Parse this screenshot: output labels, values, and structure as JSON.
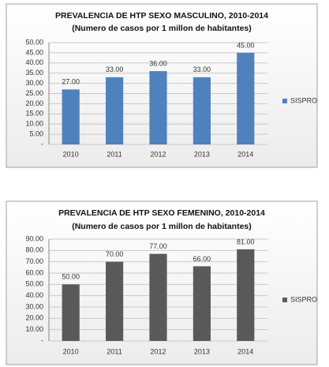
{
  "chart_data": [
    {
      "type": "bar",
      "title": "PREVALENCIA DE HTP SEXO MASCULINO, 2010-2014",
      "subtitle": "(Numero de casos por 1 millon de habitantes)",
      "categories": [
        "2010",
        "2011",
        "2012",
        "2013",
        "2014"
      ],
      "series": [
        {
          "name": "SISPRO",
          "color": "#4f81bd",
          "values": [
            27,
            33,
            36,
            33,
            45
          ],
          "value_labels": [
            "27.00",
            "33.00",
            "36.00",
            "33.00",
            "45.00"
          ]
        }
      ],
      "ylim": [
        0,
        50
      ],
      "yticks": [
        {
          "value": 0,
          "label": "-"
        },
        {
          "value": 5,
          "label": "5.00"
        },
        {
          "value": 10,
          "label": "10.00"
        },
        {
          "value": 15,
          "label": "15.00"
        },
        {
          "value": 20,
          "label": "20.00"
        },
        {
          "value": 25,
          "label": "25.00"
        },
        {
          "value": 30,
          "label": "30.00"
        },
        {
          "value": 35,
          "label": "35.00"
        },
        {
          "value": 40,
          "label": "40.00"
        },
        {
          "value": 45,
          "label": "45.00"
        },
        {
          "value": 50,
          "label": "50.00"
        }
      ],
      "grid": true,
      "legend": "right"
    },
    {
      "type": "bar",
      "title": "PREVALENCIA DE HTP SEXO FEMENINO, 2010-2014",
      "subtitle": "(Numero de casos por 1 millon de habitantes)",
      "categories": [
        "2010",
        "2011",
        "2012",
        "2013",
        "2014"
      ],
      "series": [
        {
          "name": "SISPRO",
          "color": "#595959",
          "values": [
            50,
            70,
            77,
            66,
            81
          ],
          "value_labels": [
            "50.00",
            "70.00",
            "77.00",
            "66.00",
            "81.00"
          ]
        }
      ],
      "ylim": [
        0,
        90
      ],
      "yticks": [
        {
          "value": 0,
          "label": "-"
        },
        {
          "value": 10,
          "label": "10.00"
        },
        {
          "value": 20,
          "label": "20.00"
        },
        {
          "value": 30,
          "label": "30.00"
        },
        {
          "value": 40,
          "label": "40.00"
        },
        {
          "value": 50,
          "label": "50.00"
        },
        {
          "value": 60,
          "label": "60.00"
        },
        {
          "value": 70,
          "label": "70.00"
        },
        {
          "value": 80,
          "label": "80.00"
        },
        {
          "value": 90,
          "label": "90.00"
        }
      ],
      "grid": true,
      "legend": "right"
    }
  ]
}
